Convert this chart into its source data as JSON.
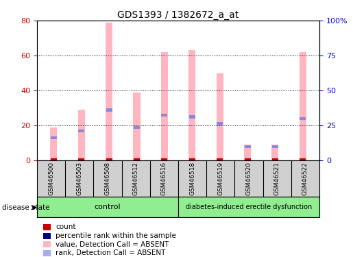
{
  "title": "GDS1393 / 1382672_a_at",
  "samples": [
    "GSM46500",
    "GSM46503",
    "GSM46508",
    "GSM46512",
    "GSM46516",
    "GSM46518",
    "GSM46519",
    "GSM46520",
    "GSM46521",
    "GSM46522"
  ],
  "pink_bar_values": [
    19,
    29,
    79,
    39,
    62,
    63,
    50,
    9,
    9,
    62
  ],
  "blue_square_values": [
    13,
    17,
    29,
    19,
    26,
    25,
    21,
    8,
    8,
    24
  ],
  "left_ylim": [
    0,
    80
  ],
  "right_ylim": [
    0,
    100
  ],
  "left_yticks": [
    0,
    20,
    40,
    60,
    80
  ],
  "right_yticks": [
    0,
    25,
    50,
    75,
    100
  ],
  "right_yticklabels": [
    "0",
    "25",
    "50",
    "75",
    "100%"
  ],
  "control_samples": 5,
  "group_labels": [
    "control",
    "diabetes-induced erectile dysfunction"
  ],
  "bar_color_pink": "#FFB6C1",
  "bar_color_blue": "#8888DD",
  "bar_color_red": "#CC0000",
  "tick_label_color_left": "#CC0000",
  "tick_label_color_right": "#0000CC",
  "legend_items": [
    {
      "label": "count",
      "color": "#CC0000"
    },
    {
      "label": "percentile rank within the sample",
      "color": "#00008B"
    },
    {
      "label": "value, Detection Call = ABSENT",
      "color": "#FFB6C1"
    },
    {
      "label": "rank, Detection Call = ABSENT",
      "color": "#AAAAEE"
    }
  ],
  "disease_state_label": "disease state",
  "bar_width": 0.25
}
